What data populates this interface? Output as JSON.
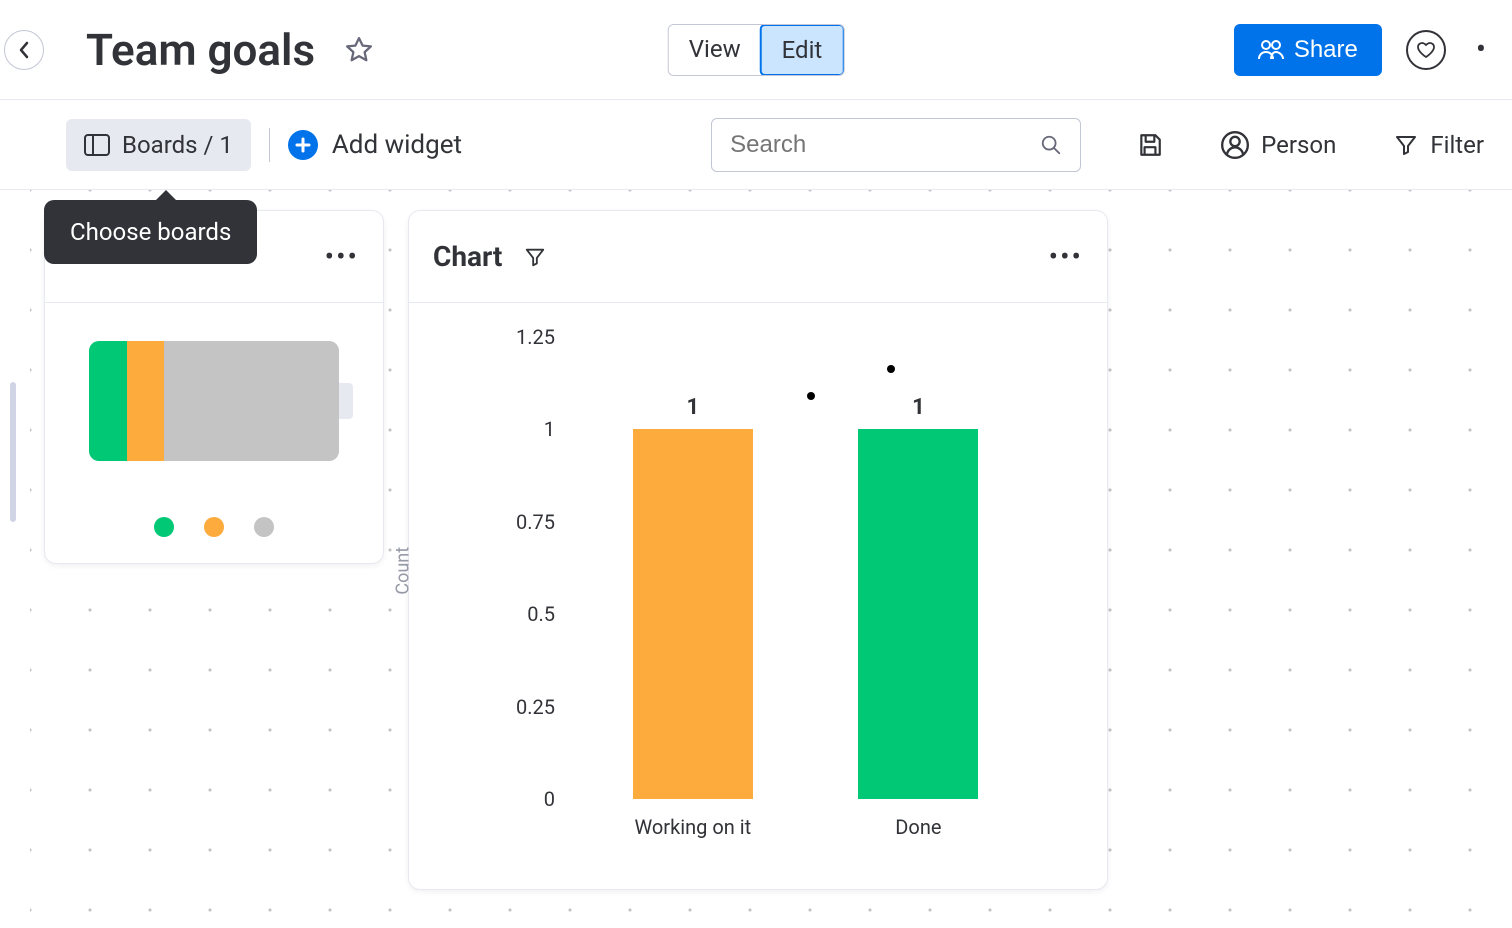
{
  "header": {
    "title": "Team goals",
    "mode": {
      "view_label": "View",
      "edit_label": "Edit",
      "active": "edit"
    },
    "share_label": "Share"
  },
  "toolbar": {
    "boards_label": "Boards / 1",
    "add_widget_label": "Add widget",
    "search_placeholder": "Search",
    "person_label": "Person",
    "filter_label": "Filter",
    "tooltip": "Choose boards"
  },
  "battery_widget": {
    "segments": [
      {
        "color": "#00c875",
        "width_pct": 15,
        "left_pct": 0
      },
      {
        "color": "#fdab3d",
        "width_pct": 15,
        "left_pct": 15
      },
      {
        "color": "#c4c4c4",
        "width_pct": 70,
        "left_pct": 30
      }
    ],
    "legend_colors": [
      "#00c875",
      "#fdab3d",
      "#c4c4c4"
    ],
    "shell_bg": "#e6e9ef"
  },
  "chart_widget": {
    "title": "Chart",
    "type": "bar",
    "y_axis_label": "Count",
    "y_ticks": [
      {
        "value": "0",
        "pos_pct": 100
      },
      {
        "value": "0.25",
        "pos_pct": 80
      },
      {
        "value": "0.5",
        "pos_pct": 60
      },
      {
        "value": "0.75",
        "pos_pct": 40
      },
      {
        "value": "1",
        "pos_pct": 20
      },
      {
        "value": "1.25",
        "pos_pct": 0
      }
    ],
    "bars": [
      {
        "label": "Working on it",
        "value": "1",
        "height_pct": 80,
        "color": "#fdab3d",
        "left_pct": 14
      },
      {
        "label": "Done",
        "value": "1",
        "height_pct": 80,
        "color": "#00c875",
        "left_pct": 62
      }
    ],
    "scatter_points": [
      {
        "left_pct": 51,
        "top_pct": 12
      },
      {
        "left_pct": 68,
        "top_pct": 6
      }
    ],
    "background_color": "#ffffff"
  },
  "colors": {
    "primary": "#0073ea",
    "text": "#323338",
    "border": "#e6e9ef",
    "muted": "#c3c6d4"
  }
}
